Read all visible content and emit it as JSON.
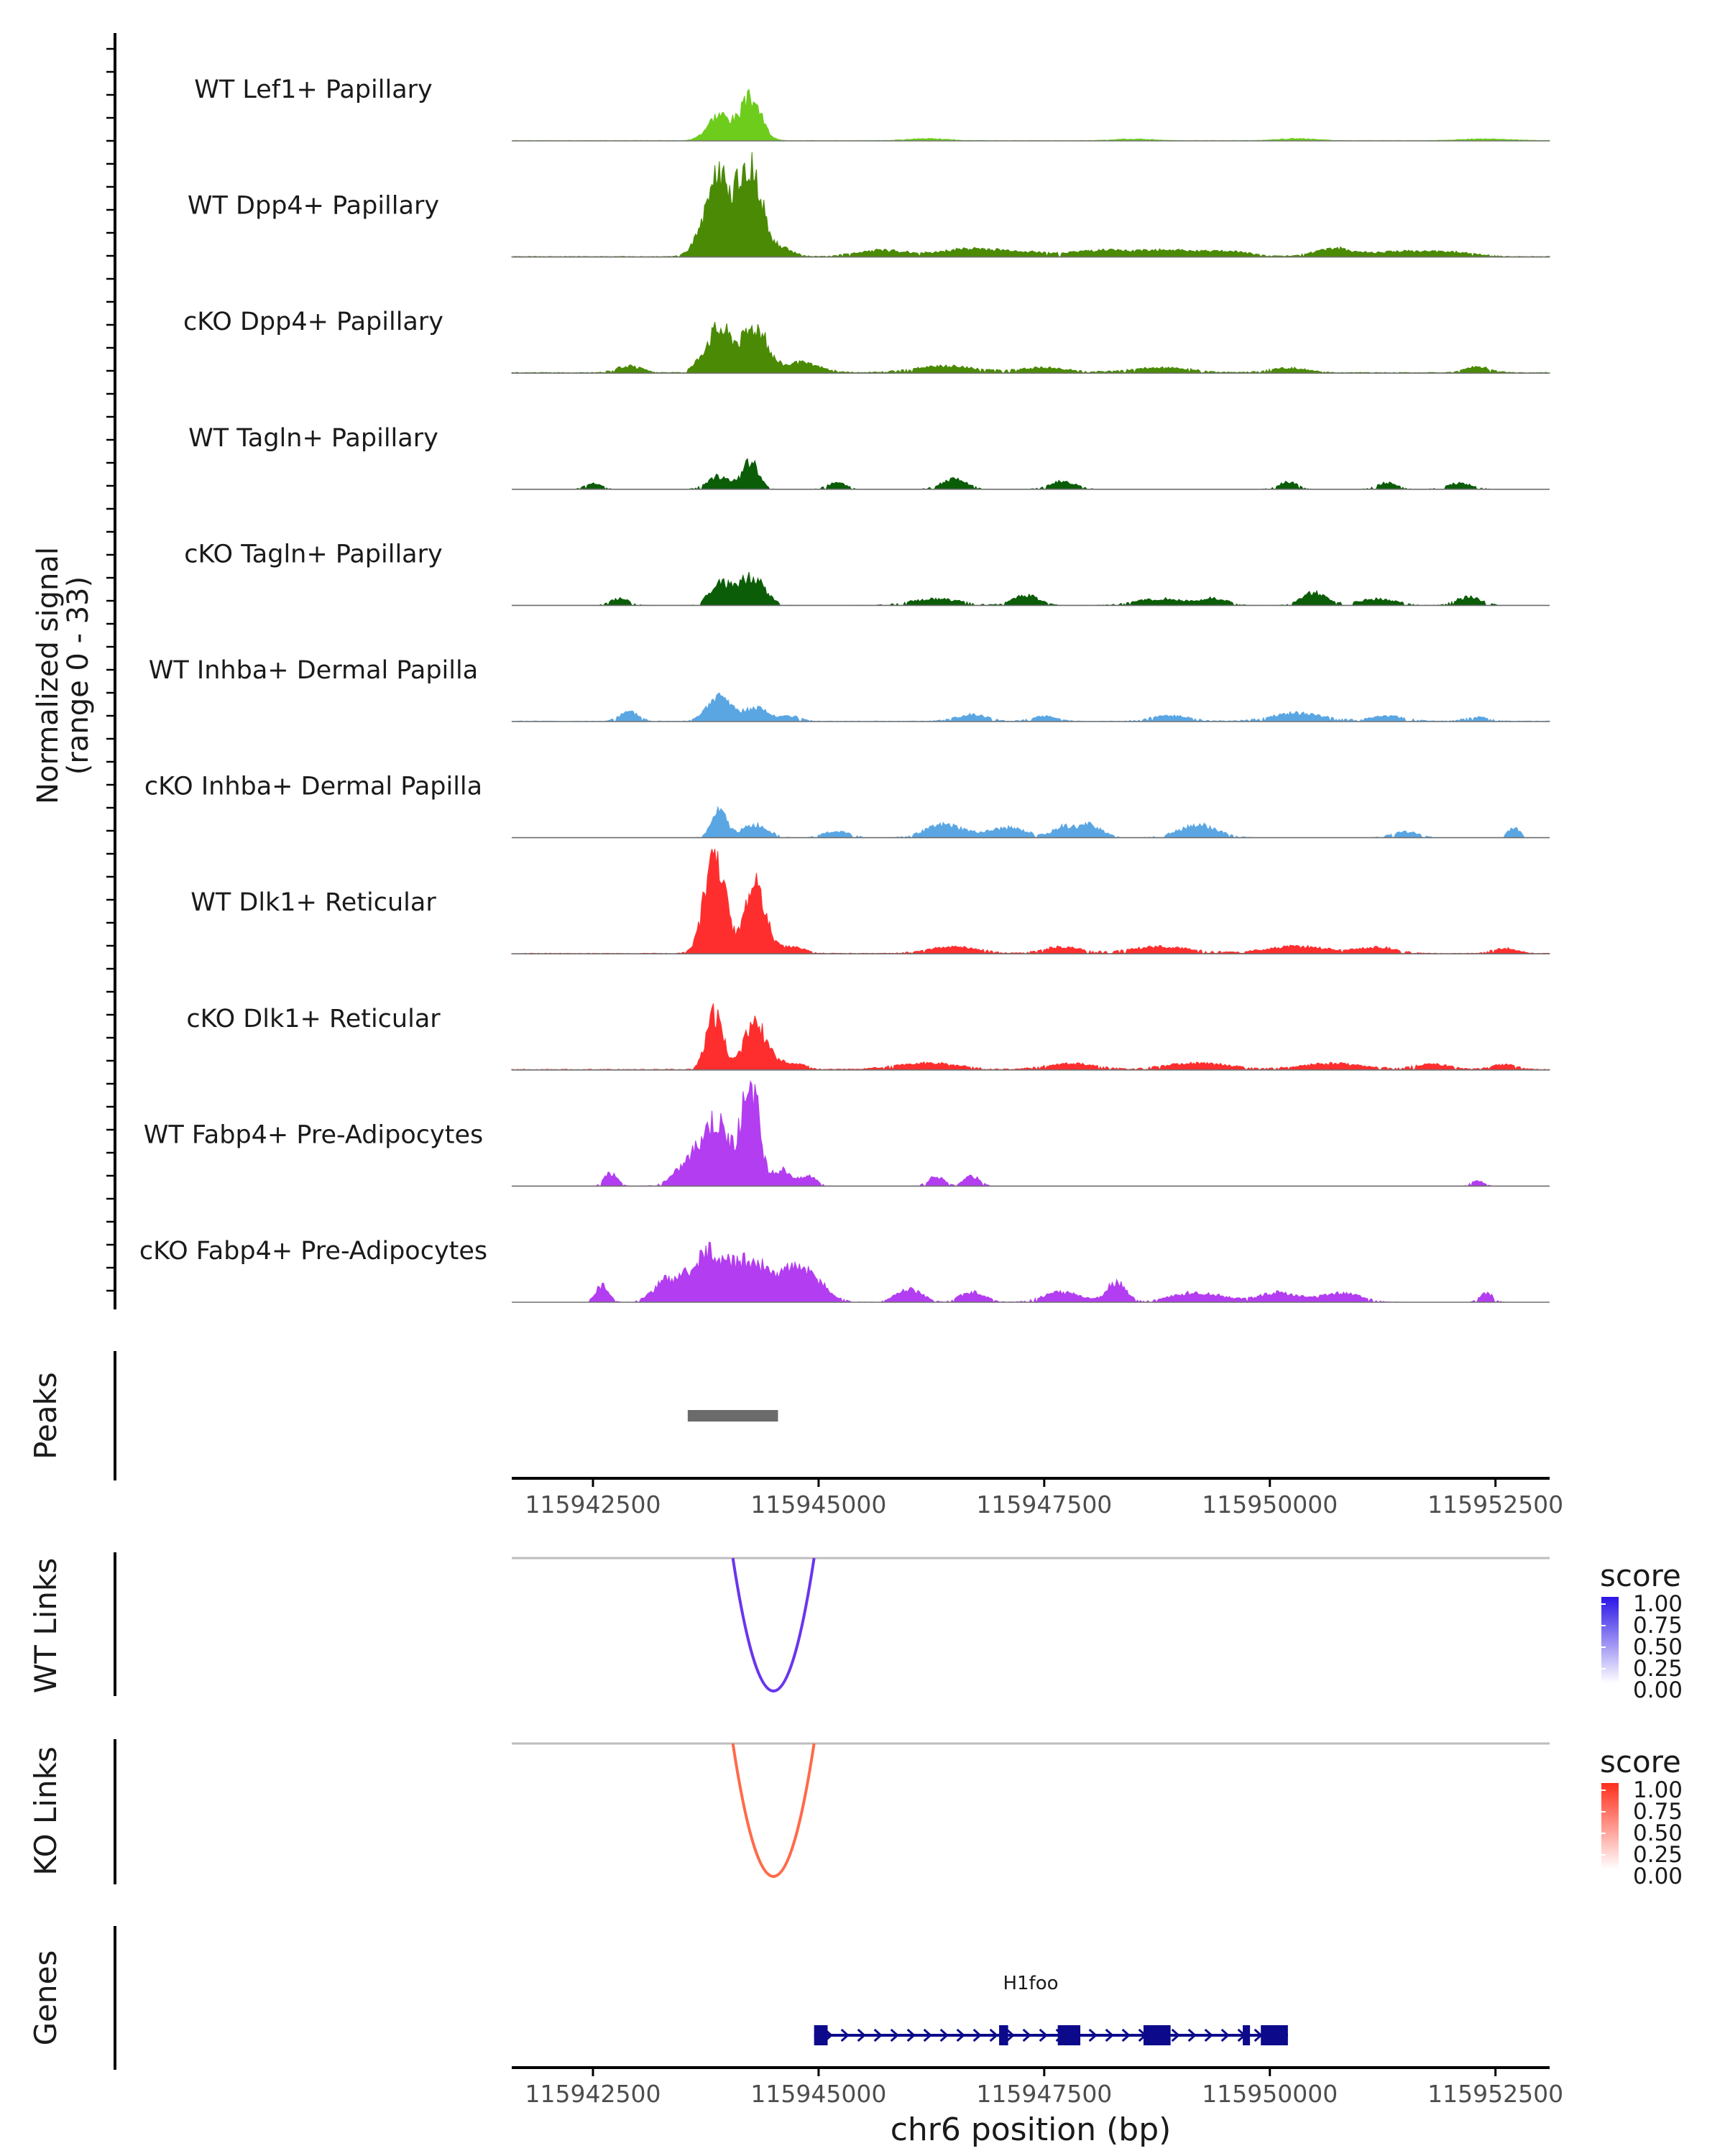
{
  "chart_data": {
    "type": "area",
    "region": {
      "chrom": "chr6",
      "start": 115941600,
      "end": 115953100
    },
    "coverage": {
      "ylabel_line1": "Normalized signal",
      "ylabel_line2": "(range 0 - 33)",
      "ylim": [
        0,
        33
      ],
      "tracks": [
        {
          "name": "WT Lef1+ Papillary",
          "color": "#6dcc1c",
          "peaks": [
            [
              115943900,
              180,
              8
            ],
            [
              115944250,
              160,
              13
            ],
            [
              115946200,
              300,
              0.6
            ],
            [
              115948500,
              300,
              0.5
            ],
            [
              115950300,
              300,
              0.6
            ],
            [
              115952400,
              400,
              0.5
            ]
          ],
          "base": 0.3,
          "density": 0.0
        },
        {
          "name": "WT Dpp4+ Papillary",
          "color": "#4a8a05",
          "peaks": [
            [
              115943900,
              220,
              25
            ],
            [
              115944250,
              160,
              28
            ],
            [
              115944550,
              200,
              3
            ],
            [
              115945700,
              400,
              2
            ],
            [
              115946600,
              400,
              2
            ],
            [
              115947200,
              500,
              1.5
            ],
            [
              115948100,
              400,
              1.8
            ],
            [
              115948800,
              400,
              2
            ],
            [
              115949500,
              400,
              1.6
            ],
            [
              115950700,
              300,
              2.5
            ],
            [
              115951400,
              400,
              1.5
            ],
            [
              115952000,
              400,
              1.3
            ]
          ],
          "base": 0.5,
          "density": 0.35
        },
        {
          "name": "cKO Dpp4+ Papillary",
          "color": "#4a8a05",
          "peaks": [
            [
              115942900,
              200,
              2
            ],
            [
              115943900,
              220,
              14
            ],
            [
              115944300,
              180,
              14
            ],
            [
              115944800,
              300,
              3
            ],
            [
              115946400,
              500,
              2
            ],
            [
              115947500,
              400,
              1.5
            ],
            [
              115948800,
              500,
              1.5
            ],
            [
              115950200,
              300,
              1.5
            ],
            [
              115952300,
              200,
              1.8
            ]
          ],
          "base": 0.6,
          "density": 0.35
        },
        {
          "name": "WT Tagln+ Papillary",
          "color": "#0c5d08",
          "peaks": [
            [
              115942500,
              120,
              2
            ],
            [
              115943900,
              180,
              4
            ],
            [
              115944250,
              120,
              9
            ],
            [
              115945200,
              150,
              2
            ],
            [
              115946500,
              200,
              3
            ],
            [
              115947700,
              200,
              2.5
            ],
            [
              115950200,
              150,
              2.2
            ],
            [
              115951300,
              150,
              2
            ],
            [
              115952100,
              200,
              1.8
            ]
          ],
          "base": 0.0,
          "density": 0.5
        },
        {
          "name": "cKO Tagln+ Papillary",
          "color": "#0c5d08",
          "peaks": [
            [
              115942800,
              150,
              2
            ],
            [
              115943900,
              150,
              7
            ],
            [
              115944250,
              200,
              9
            ],
            [
              115946300,
              400,
              2
            ],
            [
              115947300,
              200,
              3
            ],
            [
              115948800,
              400,
              2
            ],
            [
              115949400,
              200,
              2
            ],
            [
              115950500,
              200,
              4
            ],
            [
              115951200,
              300,
              2
            ],
            [
              115952200,
              200,
              2.5
            ]
          ],
          "base": 0.0,
          "density": 0.6
        },
        {
          "name": "WT Inhba+ Dermal Papilla",
          "color": "#5aa6e3",
          "peaks": [
            [
              115942900,
              150,
              3
            ],
            [
              115943900,
              180,
              8
            ],
            [
              115944300,
              200,
              4
            ],
            [
              115944700,
              150,
              1.5
            ],
            [
              115946700,
              250,
              2
            ],
            [
              115947500,
              200,
              1.5
            ],
            [
              115948900,
              300,
              1.8
            ],
            [
              115950300,
              400,
              2.5
            ],
            [
              115951300,
              300,
              1.5
            ],
            [
              115952300,
              200,
              1.2
            ]
          ],
          "base": 0.4,
          "density": 0.4
        },
        {
          "name": "cKO Inhba+ Dermal Papilla",
          "color": "#5aa6e3",
          "peaks": [
            [
              115943900,
              120,
              8
            ],
            [
              115944300,
              200,
              4
            ],
            [
              115945200,
              200,
              2
            ],
            [
              115946400,
              300,
              4
            ],
            [
              115947100,
              300,
              3
            ],
            [
              115947700,
              150,
              3
            ],
            [
              115948000,
              200,
              4
            ],
            [
              115949200,
              300,
              4
            ],
            [
              115951500,
              200,
              1.8
            ],
            [
              115952700,
              100,
              3
            ]
          ],
          "base": 0.0,
          "density": 0.55
        },
        {
          "name": "WT Dlk1+ Reticular",
          "color": "#ff2e2e",
          "peaks": [
            [
              115943850,
              160,
              31
            ],
            [
              115944300,
              160,
              21
            ],
            [
              115944700,
              200,
              2
            ],
            [
              115946500,
              400,
              2
            ],
            [
              115947700,
              300,
              2
            ],
            [
              115948800,
              500,
              2
            ],
            [
              115950300,
              500,
              2.2
            ],
            [
              115951200,
              300,
              1.8
            ],
            [
              115952600,
              200,
              1.5
            ]
          ],
          "base": 0.5,
          "density": 0.35
        },
        {
          "name": "cKO Dlk1+ Reticular",
          "color": "#ff2e2e",
          "peaks": [
            [
              115943850,
              130,
              17
            ],
            [
              115944300,
              180,
              14
            ],
            [
              115944700,
              200,
              2
            ],
            [
              115946200,
              500,
              2
            ],
            [
              115947800,
              400,
              1.8
            ],
            [
              115949200,
              500,
              2
            ],
            [
              115950700,
              500,
              1.8
            ],
            [
              115951800,
              300,
              1.6
            ],
            [
              115952600,
              200,
              1.5
            ]
          ],
          "base": 0.6,
          "density": 0.35
        },
        {
          "name": "WT Fabp4+ Pre-Adipocytes",
          "color": "#b33df0",
          "peaks": [
            [
              115942700,
              100,
              4
            ],
            [
              115943500,
              200,
              4
            ],
            [
              115943850,
              250,
              20
            ],
            [
              115944250,
              130,
              32
            ],
            [
              115944600,
              150,
              5
            ],
            [
              115944900,
              120,
              3
            ],
            [
              115946300,
              120,
              3
            ],
            [
              115946700,
              120,
              3
            ],
            [
              115952300,
              100,
              1.5
            ]
          ],
          "base": 0.0,
          "density": 0.5
        },
        {
          "name": "cKO Fabp4+ Pre-Adipocytes",
          "color": "#b33df0",
          "peaks": [
            [
              115942600,
              100,
              5
            ],
            [
              115943300,
              200,
              5
            ],
            [
              115943800,
              350,
              15
            ],
            [
              115944300,
              250,
              10
            ],
            [
              115944800,
              300,
              11
            ],
            [
              115946000,
              200,
              4
            ],
            [
              115946700,
              200,
              3
            ],
            [
              115947700,
              300,
              3
            ],
            [
              115948300,
              150,
              6
            ],
            [
              115949200,
              400,
              3
            ],
            [
              115950100,
              300,
              3
            ],
            [
              115950800,
              300,
              3
            ],
            [
              115952400,
              100,
              3
            ]
          ],
          "base": 0.0,
          "density": 0.6
        }
      ]
    },
    "peaks_track": {
      "label": "Peaks",
      "regions": [
        [
          115943550,
          115944550
        ]
      ],
      "color": "#6b6b6b"
    },
    "axis_mid": {
      "ticks": [
        115942500,
        115945000,
        115947500,
        115950000,
        115952500
      ],
      "tick_labels": [
        "115942500",
        "115945000",
        "115947500",
        "115950000",
        "115952500"
      ]
    },
    "links": [
      {
        "label": "WT Links",
        "color": "#6a35ee",
        "legend_title": "score",
        "legend_low": "#ffffff",
        "legend_high": "#2a14e6",
        "legend_ticks": [
          "1.00",
          "0.75",
          "0.50",
          "0.25",
          "0.00"
        ],
        "arcs": [
          {
            "start": 115944050,
            "end": 115944950,
            "score": 0.8
          }
        ]
      },
      {
        "label": "KO Links",
        "color": "#ff6a4a",
        "legend_title": "score",
        "legend_low": "#ffffff",
        "legend_high": "#ff2e1a",
        "legend_ticks": [
          "1.00",
          "0.75",
          "0.50",
          "0.25",
          "0.00"
        ],
        "arcs": [
          {
            "start": 115944050,
            "end": 115944950,
            "score": 0.7
          }
        ]
      }
    ],
    "genes": {
      "label": "Genes",
      "color": "#0c0a8a",
      "gene_name": "H1foo",
      "gene_start": 115944950,
      "gene_end": 115950200,
      "strand": "+",
      "exons": [
        [
          115944950,
          115945100
        ],
        [
          115947000,
          115947100
        ],
        [
          115947650,
          115947900
        ],
        [
          115948600,
          115948900
        ],
        [
          115949700,
          115949780
        ],
        [
          115949900,
          115950200
        ]
      ]
    },
    "axis_bottom": {
      "ticks": [
        115942500,
        115945000,
        115947500,
        115950000,
        115952500
      ],
      "tick_labels": [
        "115942500",
        "115945000",
        "115947500",
        "115950000",
        "115952500"
      ],
      "xlabel": "chr6 position (bp)"
    }
  }
}
